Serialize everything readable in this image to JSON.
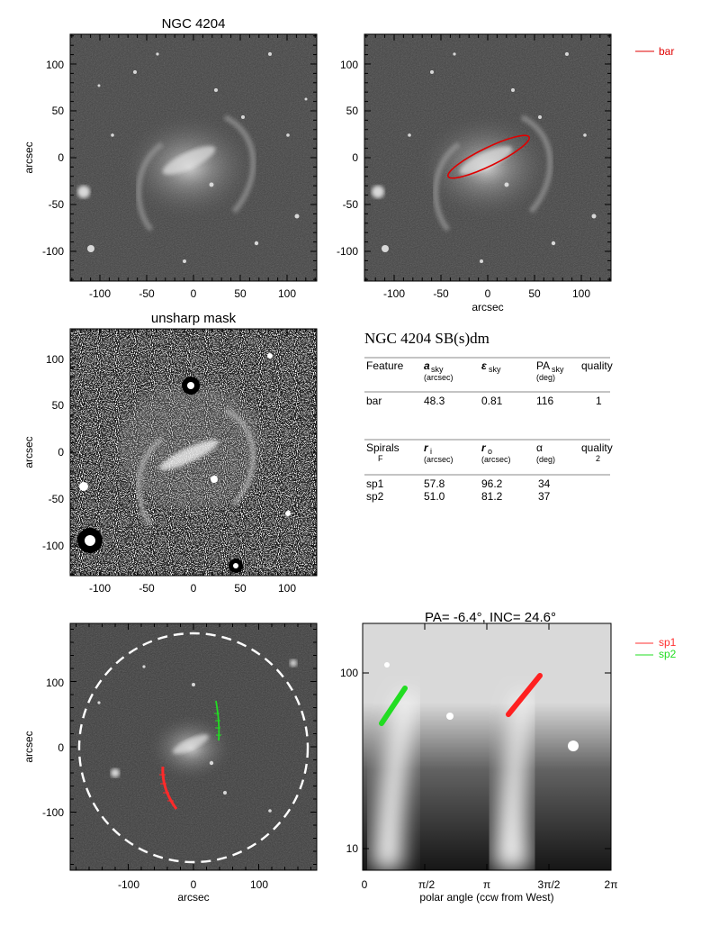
{
  "panels": {
    "p1": {
      "title": "NGC 4204",
      "ylabel": "arcsec",
      "xlabel": "",
      "xticks": [
        "-100",
        "-50",
        "0",
        "50",
        "100"
      ],
      "yticks": [
        "100",
        "50",
        "0",
        "-50",
        "-100"
      ]
    },
    "p2": {
      "title": "",
      "ylabel": "",
      "xlabel": "arcsec",
      "xticks": [
        "-100",
        "-50",
        "0",
        "50",
        "100"
      ],
      "yticks": [
        "100",
        "50",
        "0",
        "-50",
        "-100"
      ],
      "legend": [
        {
          "name": "bar",
          "color": "#e00000"
        }
      ]
    },
    "p3": {
      "title": "unsharp mask",
      "ylabel": "arcsec",
      "xlabel": "",
      "xticks": [
        "-100",
        "-50",
        "0",
        "50",
        "100"
      ],
      "yticks": [
        "100",
        "50",
        "0",
        "-50",
        "-100"
      ]
    },
    "p5": {
      "title": "",
      "ylabel": "arcsec",
      "xlabel": "arcsec",
      "xticks": [
        "-100",
        "0",
        "100"
      ],
      "yticks": [
        "100",
        "0",
        "-100"
      ]
    },
    "p6": {
      "title": "PA=  -6.4°, INC=  24.6°",
      "ylabel": "",
      "xlabel": "polar angle (ccw from West)",
      "xticks": [
        "0",
        "π/2",
        "π",
        "3π/2",
        "2π"
      ],
      "yticks": [
        "100",
        "10"
      ],
      "legend": [
        {
          "name": "sp1",
          "color": "#ff3030"
        },
        {
          "name": "sp2",
          "color": "#22dd22"
        }
      ]
    }
  },
  "table": {
    "title": "NGC 4204  SB(s)dm",
    "bar_header": {
      "c1": "Feature",
      "c2": "a",
      "c2_sub": "sky",
      "c2_unit": "(arcsec)",
      "c3": "ε",
      "c3_sub": "sky",
      "c4": "PA",
      "c4_sub": "sky",
      "c4_unit": "(deg)",
      "c5": "quality"
    },
    "bar_row": {
      "c1": "bar",
      "c2": "48.3",
      "c3": "0.81",
      "c4": "116",
      "c5": "1"
    },
    "sp_header": {
      "c1": "Spirals",
      "c1b": "F",
      "c2": "r",
      "c2_sub": "i",
      "c2_unit": "(arcsec)",
      "c3": "r",
      "c3_sub": "o",
      "c3_unit": "(arcsec)",
      "c4": "α",
      "c4_unit": "(deg)",
      "c5": "quality",
      "c5b": "2"
    },
    "sp_rows": [
      {
        "c1": "sp1",
        "c2": "57.8",
        "c3": "96.2",
        "c4": "34"
      },
      {
        "c1": "sp2",
        "c2": "51.0",
        "c3": "81.2",
        "c4": "37"
      }
    ]
  },
  "colors": {
    "bar": "#e00000",
    "sp1": "#ff2a2a",
    "sp2": "#22dd22",
    "mask": "#ffffff"
  }
}
